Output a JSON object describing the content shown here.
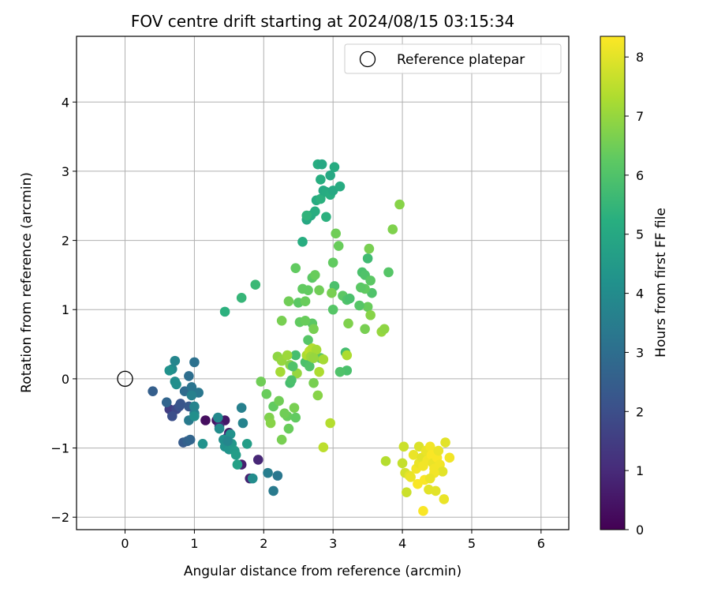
{
  "chart_data": {
    "type": "scatter",
    "title": "FOV centre drift starting at 2024/08/15 03:15:34",
    "xlabel": "Angular distance from reference (arcmin)",
    "ylabel": "Rotation from reference (arcmin)",
    "xlim": [
      -0.7,
      6.4
    ],
    "ylim": [
      -2.18,
      4.95
    ],
    "xticks": [
      "0",
      "1",
      "2",
      "3",
      "4",
      "5",
      "6"
    ],
    "yticks": [
      "−2",
      "−1",
      "0",
      "1",
      "2",
      "3",
      "4"
    ],
    "grid": true,
    "legend": {
      "placement": "top-right",
      "entries": [
        "Reference platepar"
      ]
    },
    "reference": {
      "x": 0,
      "y": 0
    },
    "colorbar": {
      "label": "Hours from first FF file",
      "range": [
        0,
        8.35
      ],
      "ticks": [
        "0",
        "1",
        "2",
        "3",
        "4",
        "5",
        "6",
        "7",
        "8"
      ],
      "colormap": "viridis"
    },
    "points": [
      {
        "x": 1.16,
        "y": -0.6,
        "c": 0.3
      },
      {
        "x": 1.32,
        "y": -0.6,
        "c": 0.4
      },
      {
        "x": 1.44,
        "y": -0.6,
        "c": 0.5
      },
      {
        "x": 1.5,
        "y": -0.78,
        "c": 0.6
      },
      {
        "x": 1.68,
        "y": -1.24,
        "c": 0.7
      },
      {
        "x": 1.8,
        "y": -1.44,
        "c": 0.8
      },
      {
        "x": 1.92,
        "y": -1.17,
        "c": 0.9
      },
      {
        "x": 1.36,
        "y": -0.68,
        "c": 1.0
      },
      {
        "x": 1.48,
        "y": -0.84,
        "c": 1.1
      },
      {
        "x": 0.64,
        "y": -0.44,
        "c": 1.5
      },
      {
        "x": 0.74,
        "y": -0.44,
        "c": 1.8
      },
      {
        "x": 0.68,
        "y": -0.54,
        "c": 2.0
      },
      {
        "x": 0.78,
        "y": -0.4,
        "c": 2.1
      },
      {
        "x": 0.8,
        "y": -0.36,
        "c": 2.2
      },
      {
        "x": 0.92,
        "y": -0.4,
        "c": 2.3
      },
      {
        "x": 0.84,
        "y": -0.92,
        "c": 2.4
      },
      {
        "x": 0.9,
        "y": -0.9,
        "c": 2.6
      },
      {
        "x": 0.94,
        "y": -0.88,
        "c": 2.7
      },
      {
        "x": 0.4,
        "y": -0.18,
        "c": 2.5
      },
      {
        "x": 0.6,
        "y": -0.34,
        "c": 2.7
      },
      {
        "x": 0.86,
        "y": -0.18,
        "c": 2.9
      },
      {
        "x": 0.92,
        "y": 0.04,
        "c": 3.0
      },
      {
        "x": 1.0,
        "y": 0.24,
        "c": 3.1
      },
      {
        "x": 0.96,
        "y": -0.12,
        "c": 3.2
      },
      {
        "x": 1.06,
        "y": -0.2,
        "c": 3.3
      },
      {
        "x": 0.92,
        "y": -0.6,
        "c": 3.4
      },
      {
        "x": 1.0,
        "y": -0.5,
        "c": 3.5
      },
      {
        "x": 0.96,
        "y": -0.24,
        "c": 3.6
      },
      {
        "x": 1.0,
        "y": -0.4,
        "c": 3.7
      },
      {
        "x": 0.72,
        "y": 0.26,
        "c": 3.8
      },
      {
        "x": 0.68,
        "y": 0.14,
        "c": 3.9
      },
      {
        "x": 0.72,
        "y": -0.04,
        "c": 4.0
      },
      {
        "x": 0.74,
        "y": -0.08,
        "c": 4.1
      },
      {
        "x": 0.64,
        "y": 0.12,
        "c": 4.2
      },
      {
        "x": 1.0,
        "y": -0.54,
        "c": 4.1
      },
      {
        "x": 1.12,
        "y": -0.94,
        "c": 4.2
      },
      {
        "x": 1.34,
        "y": -0.56,
        "c": 3.9
      },
      {
        "x": 1.36,
        "y": -0.72,
        "c": 4.0
      },
      {
        "x": 1.42,
        "y": -0.88,
        "c": 4.1
      },
      {
        "x": 1.44,
        "y": -0.98,
        "c": 4.2
      },
      {
        "x": 1.5,
        "y": -1.02,
        "c": 4.3
      },
      {
        "x": 1.54,
        "y": -0.94,
        "c": 4.4
      },
      {
        "x": 1.58,
        "y": -1.04,
        "c": 4.5
      },
      {
        "x": 1.6,
        "y": -1.1,
        "c": 4.6
      },
      {
        "x": 1.62,
        "y": -1.24,
        "c": 4.7
      },
      {
        "x": 1.68,
        "y": -0.42,
        "c": 3.6
      },
      {
        "x": 1.7,
        "y": -0.64,
        "c": 3.7
      },
      {
        "x": 1.84,
        "y": -1.44,
        "c": 4.0
      },
      {
        "x": 1.76,
        "y": -0.94,
        "c": 4.6
      },
      {
        "x": 2.06,
        "y": -1.36,
        "c": 3.5
      },
      {
        "x": 2.2,
        "y": -1.4,
        "c": 3.3
      },
      {
        "x": 2.14,
        "y": -1.62,
        "c": 3.4
      },
      {
        "x": 1.52,
        "y": -0.8,
        "c": 4.2
      },
      {
        "x": 1.48,
        "y": -0.9,
        "c": 3.8
      },
      {
        "x": 1.44,
        "y": 0.97,
        "c": 5.3
      },
      {
        "x": 1.68,
        "y": 1.17,
        "c": 5.5
      },
      {
        "x": 1.88,
        "y": 1.36,
        "c": 5.6
      },
      {
        "x": 2.56,
        "y": 1.98,
        "c": 5.2
      },
      {
        "x": 2.62,
        "y": 2.3,
        "c": 5.0
      },
      {
        "x": 2.68,
        "y": 2.36,
        "c": 5.1
      },
      {
        "x": 2.74,
        "y": 2.42,
        "c": 5.2
      },
      {
        "x": 2.76,
        "y": 2.58,
        "c": 5.1
      },
      {
        "x": 2.82,
        "y": 2.6,
        "c": 5.3
      },
      {
        "x": 2.86,
        "y": 2.72,
        "c": 5.0
      },
      {
        "x": 2.9,
        "y": 2.7,
        "c": 5.1
      },
      {
        "x": 2.96,
        "y": 2.66,
        "c": 5.2
      },
      {
        "x": 3.0,
        "y": 2.72,
        "c": 5.0
      },
      {
        "x": 3.1,
        "y": 2.78,
        "c": 5.1
      },
      {
        "x": 2.82,
        "y": 2.88,
        "c": 5.2
      },
      {
        "x": 2.96,
        "y": 2.94,
        "c": 5.0
      },
      {
        "x": 3.02,
        "y": 3.06,
        "c": 5.1
      },
      {
        "x": 2.78,
        "y": 3.1,
        "c": 5.2
      },
      {
        "x": 2.84,
        "y": 3.1,
        "c": 5.0
      },
      {
        "x": 2.9,
        "y": 2.34,
        "c": 5.3
      },
      {
        "x": 2.62,
        "y": 2.36,
        "c": 5.4
      },
      {
        "x": 2.46,
        "y": 0.34,
        "c": 5.8
      },
      {
        "x": 2.6,
        "y": 0.24,
        "c": 5.9
      },
      {
        "x": 2.66,
        "y": 0.18,
        "c": 6.0
      },
      {
        "x": 2.74,
        "y": 0.36,
        "c": 6.1
      },
      {
        "x": 2.82,
        "y": 0.3,
        "c": 6.2
      },
      {
        "x": 2.64,
        "y": 0.56,
        "c": 6.1
      },
      {
        "x": 2.7,
        "y": 0.8,
        "c": 6.2
      },
      {
        "x": 2.5,
        "y": 1.1,
        "c": 6.2
      },
      {
        "x": 2.56,
        "y": 1.3,
        "c": 6.3
      },
      {
        "x": 2.6,
        "y": 1.12,
        "c": 6.4
      },
      {
        "x": 2.64,
        "y": 1.28,
        "c": 6.3
      },
      {
        "x": 2.7,
        "y": 1.46,
        "c": 6.2
      },
      {
        "x": 2.74,
        "y": 1.5,
        "c": 6.4
      },
      {
        "x": 2.8,
        "y": 1.28,
        "c": 6.5
      },
      {
        "x": 2.46,
        "y": 1.6,
        "c": 6.3
      },
      {
        "x": 2.36,
        "y": 1.12,
        "c": 6.5
      },
      {
        "x": 2.26,
        "y": 0.84,
        "c": 6.6
      },
      {
        "x": 2.52,
        "y": 0.82,
        "c": 6.3
      },
      {
        "x": 2.6,
        "y": 0.84,
        "c": 6.4
      },
      {
        "x": 2.72,
        "y": 0.72,
        "c": 6.6
      },
      {
        "x": 3.0,
        "y": 1.0,
        "c": 6.1
      },
      {
        "x": 3.02,
        "y": 1.34,
        "c": 5.9
      },
      {
        "x": 3.0,
        "y": 1.68,
        "c": 6.3
      },
      {
        "x": 3.04,
        "y": 2.1,
        "c": 6.5
      },
      {
        "x": 3.08,
        "y": 1.92,
        "c": 6.4
      },
      {
        "x": 3.14,
        "y": 1.2,
        "c": 6.2
      },
      {
        "x": 3.2,
        "y": 1.14,
        "c": 6.0
      },
      {
        "x": 3.24,
        "y": 1.16,
        "c": 5.9
      },
      {
        "x": 3.18,
        "y": 0.38,
        "c": 5.8
      },
      {
        "x": 3.2,
        "y": 0.12,
        "c": 5.9
      },
      {
        "x": 3.1,
        "y": 0.1,
        "c": 6.0
      },
      {
        "x": 3.42,
        "y": 1.54,
        "c": 5.9
      },
      {
        "x": 3.46,
        "y": 1.5,
        "c": 6.0
      },
      {
        "x": 3.5,
        "y": 1.74,
        "c": 5.7
      },
      {
        "x": 3.52,
        "y": 1.88,
        "c": 6.6
      },
      {
        "x": 3.54,
        "y": 1.42,
        "c": 6.2
      },
      {
        "x": 3.56,
        "y": 1.24,
        "c": 6.0
      },
      {
        "x": 3.46,
        "y": 1.3,
        "c": 6.3
      },
      {
        "x": 3.5,
        "y": 1.04,
        "c": 6.4
      },
      {
        "x": 3.38,
        "y": 1.06,
        "c": 6.1
      },
      {
        "x": 3.4,
        "y": 1.32,
        "c": 6.2
      },
      {
        "x": 3.54,
        "y": 0.92,
        "c": 6.8
      },
      {
        "x": 3.46,
        "y": 0.72,
        "c": 6.6
      },
      {
        "x": 3.22,
        "y": 0.8,
        "c": 6.7
      },
      {
        "x": 3.8,
        "y": 1.54,
        "c": 6.1
      },
      {
        "x": 3.86,
        "y": 2.16,
        "c": 6.7
      },
      {
        "x": 3.96,
        "y": 2.52,
        "c": 6.8
      },
      {
        "x": 3.7,
        "y": 0.68,
        "c": 7.0
      },
      {
        "x": 3.74,
        "y": 0.72,
        "c": 6.9
      },
      {
        "x": 2.2,
        "y": 0.32,
        "c": 6.9
      },
      {
        "x": 2.26,
        "y": 0.26,
        "c": 7.0
      },
      {
        "x": 2.34,
        "y": 0.34,
        "c": 7.1
      },
      {
        "x": 2.24,
        "y": 0.1,
        "c": 7.2
      },
      {
        "x": 2.38,
        "y": 0.2,
        "c": 6.8
      },
      {
        "x": 2.48,
        "y": 0.08,
        "c": 7.0
      },
      {
        "x": 2.62,
        "y": 0.34,
        "c": 7.3
      },
      {
        "x": 2.66,
        "y": 0.4,
        "c": 7.5
      },
      {
        "x": 2.7,
        "y": 0.44,
        "c": 7.4
      },
      {
        "x": 2.76,
        "y": 0.42,
        "c": 7.2
      },
      {
        "x": 2.8,
        "y": 0.1,
        "c": 7.3
      },
      {
        "x": 2.68,
        "y": 0.32,
        "c": 7.1
      },
      {
        "x": 2.72,
        "y": 0.3,
        "c": 7.0
      },
      {
        "x": 2.86,
        "y": 0.28,
        "c": 7.2
      },
      {
        "x": 3.2,
        "y": 0.34,
        "c": 7.3
      },
      {
        "x": 2.96,
        "y": -0.64,
        "c": 7.4
      },
      {
        "x": 2.86,
        "y": -0.99,
        "c": 7.5
      },
      {
        "x": 2.78,
        "y": -0.24,
        "c": 6.8
      },
      {
        "x": 2.72,
        "y": -0.06,
        "c": 6.6
      },
      {
        "x": 1.96,
        "y": -0.04,
        "c": 6.5
      },
      {
        "x": 2.04,
        "y": -0.22,
        "c": 6.4
      },
      {
        "x": 2.14,
        "y": -0.4,
        "c": 6.3
      },
      {
        "x": 2.22,
        "y": -0.32,
        "c": 6.5
      },
      {
        "x": 2.34,
        "y": -0.54,
        "c": 6.4
      },
      {
        "x": 2.44,
        "y": -0.42,
        "c": 6.6
      },
      {
        "x": 2.46,
        "y": -0.56,
        "c": 6.3
      },
      {
        "x": 2.36,
        "y": -0.72,
        "c": 6.4
      },
      {
        "x": 2.3,
        "y": -0.5,
        "c": 6.5
      },
      {
        "x": 2.26,
        "y": -0.88,
        "c": 6.6
      },
      {
        "x": 2.08,
        "y": -0.56,
        "c": 6.7
      },
      {
        "x": 2.1,
        "y": -0.64,
        "c": 6.8
      },
      {
        "x": 2.38,
        "y": -0.06,
        "c": 5.8
      },
      {
        "x": 2.4,
        "y": -0.02,
        "c": 5.9
      },
      {
        "x": 2.42,
        "y": 0.18,
        "c": 6.0
      },
      {
        "x": 2.98,
        "y": 1.24,
        "c": 6.6
      },
      {
        "x": 3.76,
        "y": -1.19,
        "c": 7.4
      },
      {
        "x": 4.0,
        "y": -1.22,
        "c": 7.6
      },
      {
        "x": 4.02,
        "y": -0.98,
        "c": 7.7
      },
      {
        "x": 4.04,
        "y": -1.36,
        "c": 7.8
      },
      {
        "x": 4.06,
        "y": -1.64,
        "c": 7.7
      },
      {
        "x": 4.1,
        "y": -1.4,
        "c": 8.0
      },
      {
        "x": 4.16,
        "y": -1.1,
        "c": 8.1
      },
      {
        "x": 4.2,
        "y": -1.3,
        "c": 8.2
      },
      {
        "x": 4.24,
        "y": -1.22,
        "c": 8.1
      },
      {
        "x": 4.24,
        "y": -0.98,
        "c": 7.9
      },
      {
        "x": 4.28,
        "y": -1.14,
        "c": 8.0
      },
      {
        "x": 4.3,
        "y": -1.26,
        "c": 8.2
      },
      {
        "x": 4.32,
        "y": -1.46,
        "c": 8.3
      },
      {
        "x": 4.34,
        "y": -1.04,
        "c": 8.1
      },
      {
        "x": 4.36,
        "y": -1.18,
        "c": 8.2
      },
      {
        "x": 4.38,
        "y": -1.6,
        "c": 8.0
      },
      {
        "x": 4.4,
        "y": -0.98,
        "c": 8.2
      },
      {
        "x": 4.42,
        "y": -1.1,
        "c": 8.3
      },
      {
        "x": 4.44,
        "y": -1.22,
        "c": 8.1
      },
      {
        "x": 4.46,
        "y": -1.3,
        "c": 8.2
      },
      {
        "x": 4.48,
        "y": -1.62,
        "c": 8.0
      },
      {
        "x": 4.5,
        "y": -1.14,
        "c": 8.3
      },
      {
        "x": 4.52,
        "y": -1.04,
        "c": 8.1
      },
      {
        "x": 4.54,
        "y": -1.24,
        "c": 8.2
      },
      {
        "x": 4.58,
        "y": -1.34,
        "c": 8.0
      },
      {
        "x": 4.6,
        "y": -1.74,
        "c": 8.1
      },
      {
        "x": 4.62,
        "y": -0.92,
        "c": 8.0
      },
      {
        "x": 4.68,
        "y": -1.14,
        "c": 8.2
      },
      {
        "x": 4.3,
        "y": -1.91,
        "c": 8.3
      },
      {
        "x": 4.12,
        "y": -1.42,
        "c": 8.1
      },
      {
        "x": 4.46,
        "y": -1.36,
        "c": 8.2
      },
      {
        "x": 4.22,
        "y": -1.52,
        "c": 8.3
      },
      {
        "x": 4.4,
        "y": -1.44,
        "c": 8.1
      }
    ]
  }
}
